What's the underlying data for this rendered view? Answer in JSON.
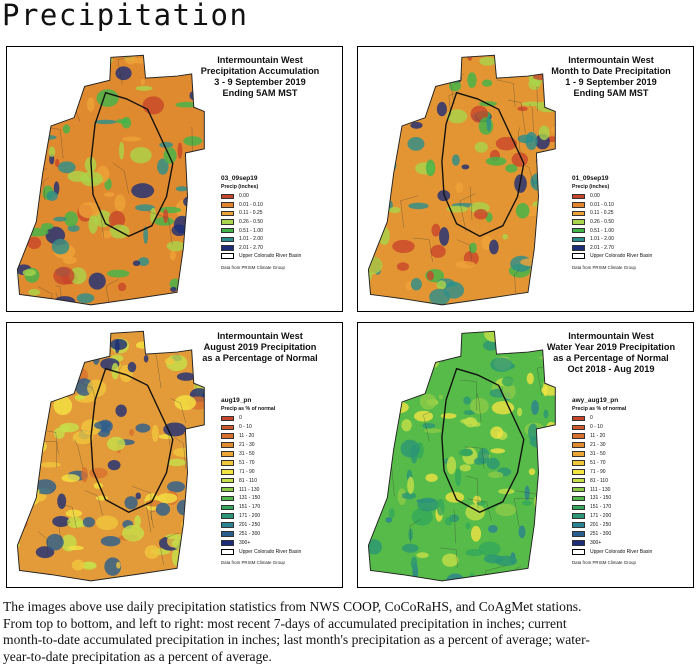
{
  "page_title": "Precipitation",
  "panels": [
    {
      "title_lines": [
        "Intermountain West",
        "Precipitation Accumulation",
        "3 - 9 September 2019",
        "Ending 5AM MST"
      ],
      "legend": {
        "name": "03_09sep19",
        "subtitle": "Precip (inches)",
        "items": [
          {
            "label": "0.00",
            "color": "#c8452b"
          },
          {
            "label": "0.01 - 0.10",
            "color": "#e2852e"
          },
          {
            "label": "0.11 - 0.25",
            "color": "#eea338"
          },
          {
            "label": "0.26 - 0.50",
            "color": "#a9d54a"
          },
          {
            "label": "0.51 - 1.00",
            "color": "#3fb54a"
          },
          {
            "label": "1.01 - 2.00",
            "color": "#2b8f8c"
          },
          {
            "label": "2.01 - 2.70",
            "color": "#1c2d78"
          }
        ],
        "basin_label": "Upper Colorado River Basin",
        "credit": "Data from PRISM Climate Group"
      },
      "map_colors": {
        "base": "#e08a30",
        "accents": [
          "#eea338",
          "#c8452b",
          "#a9d54a",
          "#3fb54a",
          "#2b8f8c",
          "#1c2d78"
        ]
      }
    },
    {
      "title_lines": [
        "Intermountain West",
        "Month to Date Precipitation",
        "1 - 9 September 2019",
        "Ending 5AM MST"
      ],
      "legend": {
        "name": "01_09sep19",
        "subtitle": "Precip (inches)",
        "items": [
          {
            "label": "0.00",
            "color": "#c8452b"
          },
          {
            "label": "0.01 - 0.10",
            "color": "#e2852e"
          },
          {
            "label": "0.11 - 0.25",
            "color": "#eea338"
          },
          {
            "label": "0.26 - 0.50",
            "color": "#a9d54a"
          },
          {
            "label": "0.51 - 1.00",
            "color": "#3fb54a"
          },
          {
            "label": "1.01 - 2.00",
            "color": "#2b8f8c"
          },
          {
            "label": "2.01 - 2.70",
            "color": "#1c2d78"
          }
        ],
        "basin_label": "Upper Colorado River Basin",
        "credit": "Data from PRISM Climate Group"
      },
      "map_colors": {
        "base": "#e39533",
        "accents": [
          "#a9d54a",
          "#3fb54a",
          "#c8452b",
          "#2b8f8c",
          "#eea338",
          "#1c2d78"
        ]
      }
    },
    {
      "title_lines": [
        "Intermountain West",
        "August 2019 Precipitation",
        "as a Percentage of Normal"
      ],
      "legend": {
        "name": "aug19_pn",
        "subtitle": "Precip as % of normal",
        "items": [
          {
            "label": "0",
            "color": "#c8452b"
          },
          {
            "label": "0 - 10",
            "color": "#cf5a2c"
          },
          {
            "label": "11 - 20",
            "color": "#d8702e"
          },
          {
            "label": "21 - 30",
            "color": "#e08a30"
          },
          {
            "label": "31 - 50",
            "color": "#eba635"
          },
          {
            "label": "51 - 70",
            "color": "#f0c63c"
          },
          {
            "label": "71 - 90",
            "color": "#f2e443"
          },
          {
            "label": "81 - 110",
            "color": "#c6e04a"
          },
          {
            "label": "111 - 130",
            "color": "#8ccc48"
          },
          {
            "label": "131 - 150",
            "color": "#52b94a"
          },
          {
            "label": "151 - 170",
            "color": "#33a85a"
          },
          {
            "label": "171 - 200",
            "color": "#2c9676"
          },
          {
            "label": "201 - 250",
            "color": "#2a8390"
          },
          {
            "label": "251 - 300",
            "color": "#2a5e8e"
          },
          {
            "label": "300+",
            "color": "#1c2d78"
          }
        ],
        "basin_label": "Upper Colorado River Basin",
        "credit": "Data from PRISM Climate Group"
      },
      "map_colors": {
        "base": "#e39a38",
        "accents": [
          "#d8702e",
          "#f0c63c",
          "#f2e443",
          "#c6e04a",
          "#2a5e8e",
          "#1c2d78"
        ]
      }
    },
    {
      "title_lines": [
        "Intermountain West",
        "Water Year 2019 Precipitation",
        "as a Percentage of Normal",
        "Oct 2018 - Aug 2019"
      ],
      "legend": {
        "name": "awy_aug19_pn",
        "subtitle": "Precip as % of normal",
        "items": [
          {
            "label": "0",
            "color": "#c8452b"
          },
          {
            "label": "0 - 10",
            "color": "#cf5a2c"
          },
          {
            "label": "11 - 20",
            "color": "#d8702e"
          },
          {
            "label": "21 - 30",
            "color": "#e08a30"
          },
          {
            "label": "31 - 50",
            "color": "#eba635"
          },
          {
            "label": "51 - 70",
            "color": "#f0c63c"
          },
          {
            "label": "71 - 90",
            "color": "#f2e443"
          },
          {
            "label": "81 - 110",
            "color": "#c6e04a"
          },
          {
            "label": "111 - 130",
            "color": "#8ccc48"
          },
          {
            "label": "131 - 150",
            "color": "#52b94a"
          },
          {
            "label": "151 - 170",
            "color": "#33a85a"
          },
          {
            "label": "171 - 200",
            "color": "#2c9676"
          },
          {
            "label": "201 - 250",
            "color": "#2a8390"
          },
          {
            "label": "251 - 300",
            "color": "#2a5e8e"
          },
          {
            "label": "300+",
            "color": "#1c2d78"
          }
        ],
        "basin_label": "Upper Colorado River Basin",
        "credit": "Data from PRISM Climate Group"
      },
      "map_colors": {
        "base": "#56bb48",
        "accents": [
          "#8ccc48",
          "#33a85a",
          "#c6e04a",
          "#2c9676",
          "#2a8390",
          "#f2e443"
        ]
      }
    }
  ],
  "caption_lines": [
    "The images above use daily precipitation statistics from NWS COOP, CoCoRaHS, and CoAgMet stations.",
    "From top to bottom, and left to right: most recent 7-days of accumulated precipitation in inches; current",
    "month-to-date accumulated precipitation in inches; last month's precipitation as a percent of average; water-",
    "year-to-date precipitation as a percent of average."
  ]
}
